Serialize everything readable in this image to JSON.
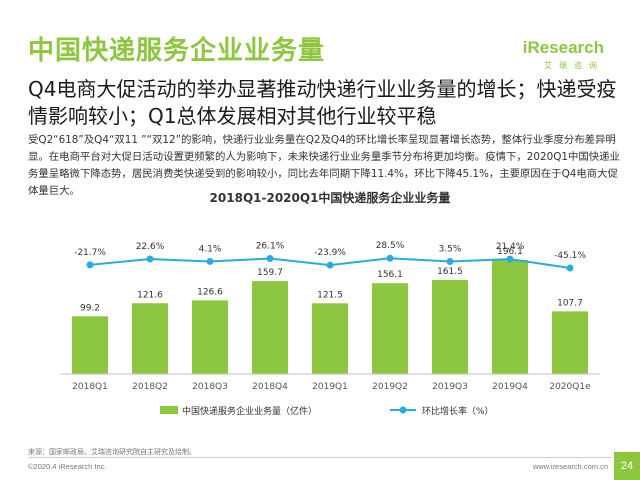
{
  "header": {
    "title": "中国快递服务企业业务量",
    "logo_main": "iResearch",
    "logo_sub": "艾瑞咨询"
  },
  "headline": "Q4电商大促活动的举办显著推动快递行业业务量的增长；快递受疫情影响较小；Q1总体发展相对其他行业较平稳",
  "body": "受Q2“618”及Q4“双11 ”“双12”的影响，快递行业业务量在Q2及Q4的环比增长率呈现显著增长态势，整体行业季度分布差异明显。在电商平台对大促日活动设置更频繁的人为影响下，未来快递行业业务量季节分布将更加均衡。疫情下，2020Q1中国快递业务量呈略微下降态势，居民消费类快递受到的影响较小，同比去年同期下降11.4%，环比下降45.1%，主要原因在于Q4电商大促体量巨大。",
  "chart_data": {
    "type": "bar",
    "title": "2018Q1-2020Q1中国快递服务企业业务量",
    "categories": [
      "2018Q1",
      "2018Q2",
      "2018Q3",
      "2018Q4",
      "2019Q1",
      "2019Q2",
      "2019Q3",
      "2019Q4",
      "2020Q1e"
    ],
    "series": [
      {
        "name": "中国快递服务企业业务量（亿件）",
        "type": "bar",
        "values": [
          99.2,
          121.6,
          126.6,
          159.7,
          121.5,
          156.1,
          161.5,
          196.1,
          107.7
        ],
        "labels": [
          "99.2",
          "121.6",
          "126.6",
          "159.7",
          "121.5",
          "156.1",
          "161.5",
          "196.1",
          "107.7"
        ]
      },
      {
        "name": "环比增长率（%）",
        "type": "line",
        "values": [
          -21.7,
          22.6,
          4.1,
          26.1,
          -23.9,
          28.5,
          3.5,
          21.4,
          -45.1
        ],
        "labels": [
          "-21.7%",
          "22.6%",
          "4.1%",
          "26.1%",
          "-23.9%",
          "28.5%",
          "3.5%",
          "21.4%",
          "-45.1%"
        ]
      }
    ],
    "ylim": [
      0,
      220
    ],
    "grid": false,
    "legend": "bottom",
    "colors": {
      "bar": "#8DC63F",
      "line": "#29ABE2"
    }
  },
  "source": "来源：国家邮政局。艾瑞咨询研究院自主研究及绘制。",
  "footer": {
    "left": "©2020.4 iResearch Inc.",
    "right": "www.iresearch.com.cn",
    "page": "24"
  }
}
